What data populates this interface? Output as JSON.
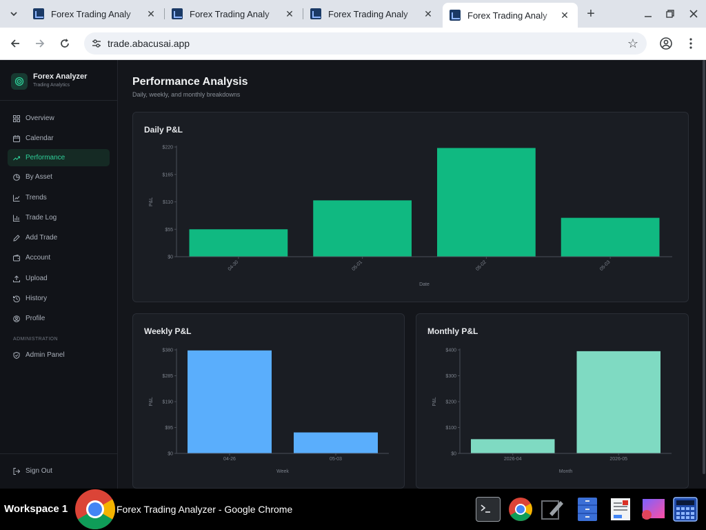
{
  "browser": {
    "tabs": [
      {
        "title": "Forex Trading Analyzer - Google Chrome"
      },
      {
        "title": "Forex Trading Analyzer - Google Chrome"
      },
      {
        "title": "Forex Trading Analyzer - Google Chrome"
      },
      {
        "title": "Forex Trading Analyzer - Google Chrome"
      }
    ],
    "tab_label": "Forex Trading Analy",
    "url": "trade.abacusai.app"
  },
  "sidebar": {
    "brand_title": "Forex Analyzer",
    "brand_subtitle": "Trading Analytics",
    "items": [
      {
        "label": "Overview",
        "icon": "grid-icon"
      },
      {
        "label": "Calendar",
        "icon": "calendar-icon"
      },
      {
        "label": "Performance",
        "icon": "trending-up-icon",
        "active": true
      },
      {
        "label": "By Asset",
        "icon": "pie-chart-icon"
      },
      {
        "label": "Trends",
        "icon": "line-chart-icon"
      },
      {
        "label": "Trade Log",
        "icon": "bar-chart-icon"
      },
      {
        "label": "Add Trade",
        "icon": "pencil-icon"
      },
      {
        "label": "Account",
        "icon": "wallet-icon"
      },
      {
        "label": "Upload",
        "icon": "upload-icon"
      },
      {
        "label": "History",
        "icon": "history-icon"
      },
      {
        "label": "Profile",
        "icon": "user-circle-icon"
      }
    ],
    "section_label": "ADMINISTRATION",
    "admin_item": {
      "label": "Admin Panel",
      "icon": "shield-icon"
    },
    "signout_label": "Sign Out"
  },
  "page": {
    "title": "Performance Analysis",
    "subtitle": "Daily, weekly, and monthly breakdowns"
  },
  "chart_data": [
    {
      "type": "bar",
      "title": "Daily P&L",
      "xlabel": "Date",
      "ylabel": "P&L",
      "categories": [
        "04-30",
        "05-01",
        "05-02",
        "05-03"
      ],
      "values": [
        55,
        113,
        218,
        78
      ],
      "ylim": [
        0,
        220
      ],
      "yticks": [
        "$0",
        "$55",
        "$110",
        "$165",
        "$220"
      ],
      "color": "#10b981"
    },
    {
      "type": "bar",
      "title": "Weekly P&L",
      "xlabel": "Week",
      "ylabel": "P&L",
      "categories": [
        "04-26",
        "05-03"
      ],
      "values": [
        378,
        77
      ],
      "ylim": [
        0,
        380
      ],
      "yticks": [
        "$0",
        "$95",
        "$190",
        "$285",
        "$380"
      ],
      "color": "#5aaefc"
    },
    {
      "type": "bar",
      "title": "Monthly P&L",
      "xlabel": "Month",
      "ylabel": "P&L",
      "categories": [
        "2026-04",
        "2026-05"
      ],
      "values": [
        55,
        395
      ],
      "ylim": [
        0,
        400
      ],
      "yticks": [
        "$0",
        "$100",
        "$200",
        "$300",
        "$400"
      ],
      "color": "#7fdac2"
    }
  ],
  "taskbar": {
    "workspace": "Workspace 1",
    "window_title": "Forex Trading Analyzer - Google Chrome"
  }
}
